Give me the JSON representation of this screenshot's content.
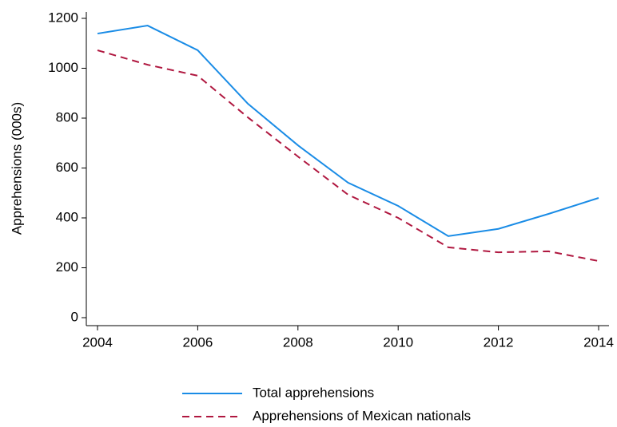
{
  "chart_data": {
    "type": "line",
    "y_label": "Apprehensions (000s)",
    "x": [
      2004,
      2005,
      2006,
      2007,
      2008,
      2009,
      2010,
      2011,
      2012,
      2013,
      2014
    ],
    "series": [
      {
        "name": "Total apprehensions",
        "color": "#1a8ce6",
        "dash": false,
        "values": [
          1139,
          1171,
          1072,
          858,
          691,
          541,
          448,
          327,
          356,
          416,
          480
        ]
      },
      {
        "name": "Apprehensions of Mexican nationals",
        "color": "#b01840",
        "dash": true,
        "values": [
          1072,
          1014,
          970,
          803,
          646,
          493,
          400,
          282,
          262,
          266,
          227
        ]
      }
    ],
    "xlim": [
      2004,
      2014
    ],
    "xticks": [
      2004,
      2006,
      2008,
      2010,
      2012,
      2014
    ],
    "ylim": [
      0,
      1200
    ],
    "yticks": [
      0,
      200,
      400,
      600,
      800,
      1000,
      1200
    ],
    "grid": false
  }
}
